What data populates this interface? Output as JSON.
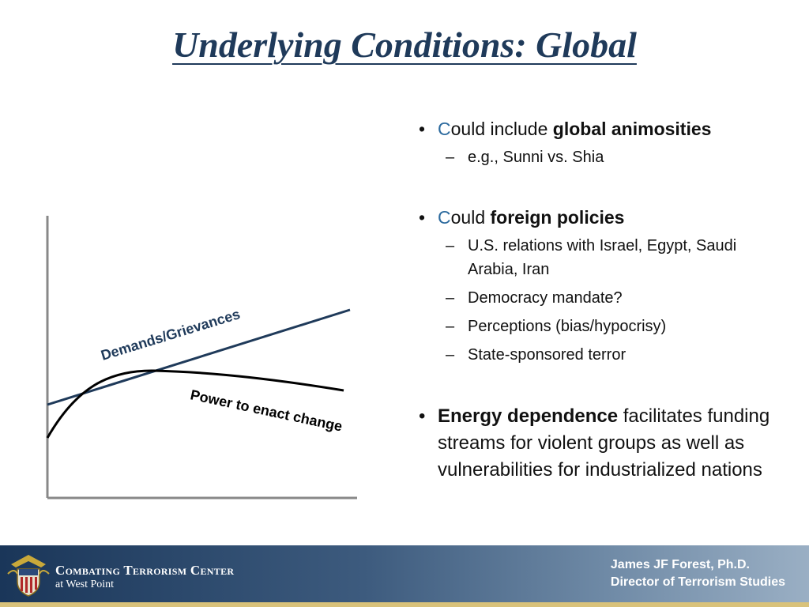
{
  "title": "Underlying Conditions: Global",
  "figure": {
    "line_label_demands": "Demands/Grievances",
    "line_label_power": "Power to enact change"
  },
  "bullets": [
    {
      "cap": "C",
      "rest": "ould include ",
      "bold": "global animosities",
      "subs": [
        "e.g., Sunni vs. Shia"
      ]
    },
    {
      "cap": "C",
      "rest": "ould ",
      "bold": "foreign policies",
      "subs": [
        "U.S. relations with Israel, Egypt, Saudi Arabia, Iran",
        "Democracy mandate?",
        "Perceptions (bias/hypocrisy)",
        "State-sponsored terror"
      ]
    },
    {
      "bold": "Energy dependence",
      "after": " facilitates funding streams for violent groups as well as vulnerabilities for industrialized nations"
    }
  ],
  "footer": {
    "org_name": "Combating Terrorism Center",
    "org_sub": "at West Point",
    "author_line1": "James JF Forest, Ph.D.",
    "author_line2": "Director of Terrorism Studies"
  },
  "colors": {
    "title": "#1f3a5a",
    "demands_line": "#1f3a5a",
    "power_line": "#000000",
    "cap_letter": "#2c6a9e"
  }
}
